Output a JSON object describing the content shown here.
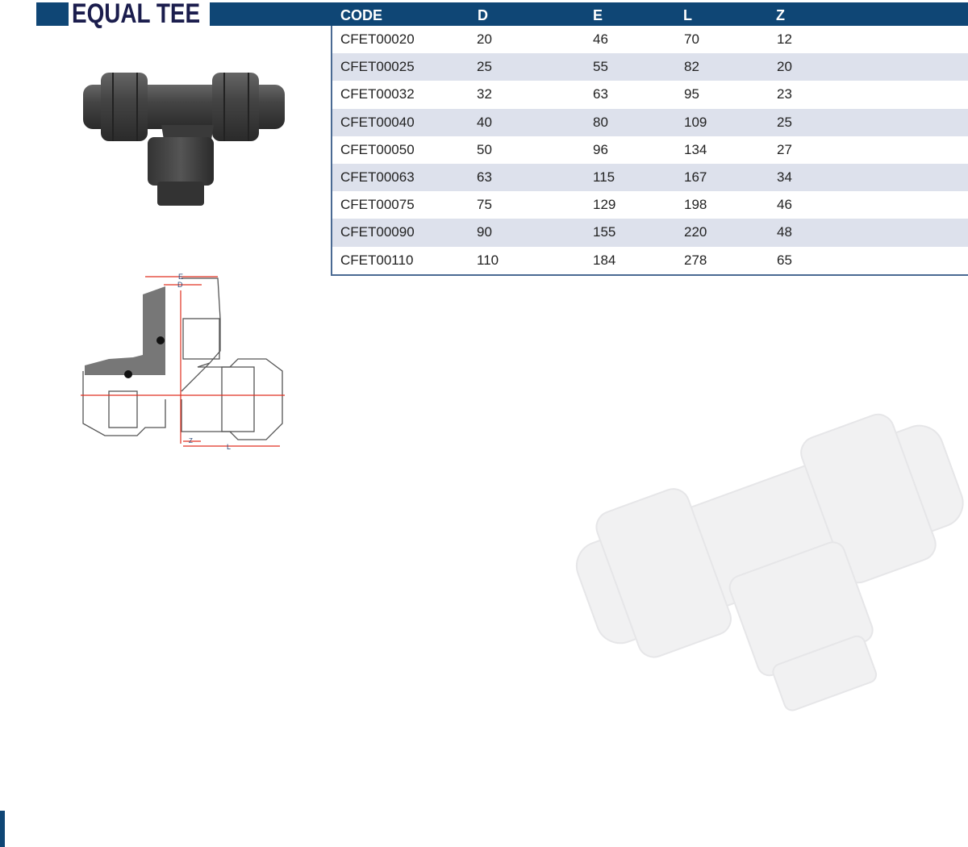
{
  "title": "EQUAL TEE",
  "table": {
    "headers": [
      "CODE",
      "D",
      "E",
      "L",
      "Z"
    ],
    "rows": [
      [
        "CFET00020",
        "20",
        "46",
        "70",
        "12"
      ],
      [
        "CFET00025",
        "25",
        "55",
        "82",
        "20"
      ],
      [
        "CFET00032",
        "32",
        "63",
        "95",
        "23"
      ],
      [
        "CFET00040",
        "40",
        "80",
        "109",
        "25"
      ],
      [
        "CFET00050",
        "50",
        "96",
        "134",
        "27"
      ],
      [
        "CFET00063",
        "63",
        "115",
        "167",
        "34"
      ],
      [
        "CFET00075",
        "75",
        "129",
        "198",
        "46"
      ],
      [
        "CFET00090",
        "90",
        "155",
        "220",
        "48"
      ],
      [
        "CFET00110",
        "110",
        "184",
        "278",
        "65"
      ]
    ]
  },
  "diagram_labels": {
    "e": "E",
    "d": "D",
    "z": "Z",
    "l": "L"
  },
  "colors": {
    "header": "#0f4675",
    "title": "#1b1d4d",
    "stripe": "#dde1ec",
    "dimension": "#e03020"
  }
}
